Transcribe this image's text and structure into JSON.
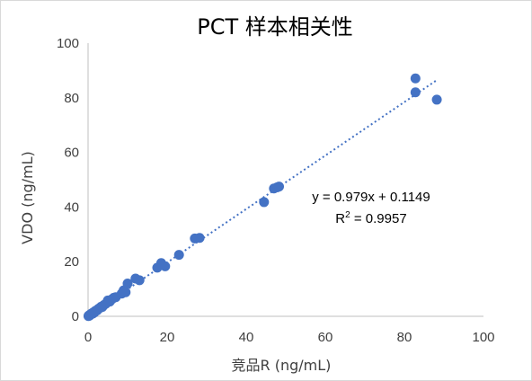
{
  "chart_data": {
    "type": "scatter",
    "title": "PCT 样本相关性",
    "xlabel": "竞品R (ng/mL)",
    "ylabel": "VDO (ng/mL)",
    "xlim": [
      0,
      100
    ],
    "ylim": [
      0,
      100
    ],
    "x_ticks": [
      "0",
      "20",
      "40",
      "60",
      "80",
      "100"
    ],
    "y_ticks": [
      "0",
      "20",
      "40",
      "60",
      "80",
      "100"
    ],
    "grid": false,
    "legend": "none",
    "point_color": "#4472c4",
    "trendline": {
      "type": "linear",
      "slope": 0.979,
      "intercept": 0.1149,
      "r_squared": 0.9957,
      "style": "dotted",
      "x_range": [
        0,
        88
      ],
      "equation_label": "y = 0.979x + 0.1149",
      "r2_prefix": "R",
      "r2_superscript": "2",
      "r2_value_text": " = 0.9957"
    },
    "points": [
      {
        "x": 0.1,
        "y": 0.1
      },
      {
        "x": 0.2,
        "y": 0.3
      },
      {
        "x": 0.3,
        "y": 0.2
      },
      {
        "x": 0.4,
        "y": 0.5
      },
      {
        "x": 0.5,
        "y": 0.4
      },
      {
        "x": 0.6,
        "y": 0.7
      },
      {
        "x": 0.8,
        "y": 0.9
      },
      {
        "x": 1.0,
        "y": 1.1
      },
      {
        "x": 1.2,
        "y": 1.0
      },
      {
        "x": 1.4,
        "y": 1.5
      },
      {
        "x": 1.6,
        "y": 1.4
      },
      {
        "x": 1.8,
        "y": 1.9
      },
      {
        "x": 2.0,
        "y": 2.1
      },
      {
        "x": 2.3,
        "y": 2.2
      },
      {
        "x": 2.6,
        "y": 2.7
      },
      {
        "x": 3.0,
        "y": 3.1
      },
      {
        "x": 3.3,
        "y": 3.5
      },
      {
        "x": 3.6,
        "y": 3.4
      },
      {
        "x": 4.0,
        "y": 4.1
      },
      {
        "x": 4.5,
        "y": 4.6
      },
      {
        "x": 5.0,
        "y": 5.8
      },
      {
        "x": 5.5,
        "y": 5.4
      },
      {
        "x": 6.0,
        "y": 6.2
      },
      {
        "x": 6.5,
        "y": 6.8
      },
      {
        "x": 7.0,
        "y": 7.0
      },
      {
        "x": 8.5,
        "y": 8.3
      },
      {
        "x": 9.0,
        "y": 9.5
      },
      {
        "x": 9.5,
        "y": 8.8
      },
      {
        "x": 10.0,
        "y": 12.0
      },
      {
        "x": 12.0,
        "y": 13.8
      },
      {
        "x": 13.0,
        "y": 13.2
      },
      {
        "x": 17.5,
        "y": 17.8
      },
      {
        "x": 18.5,
        "y": 19.5
      },
      {
        "x": 19.5,
        "y": 18.3
      },
      {
        "x": 23.0,
        "y": 22.5
      },
      {
        "x": 27.0,
        "y": 28.5
      },
      {
        "x": 28.2,
        "y": 28.7
      },
      {
        "x": 44.5,
        "y": 41.8
      },
      {
        "x": 47.0,
        "y": 46.8
      },
      {
        "x": 47.8,
        "y": 47.2
      },
      {
        "x": 48.3,
        "y": 47.5
      },
      {
        "x": 82.8,
        "y": 87.1
      },
      {
        "x": 82.8,
        "y": 82.0
      },
      {
        "x": 88.2,
        "y": 79.3
      }
    ]
  }
}
